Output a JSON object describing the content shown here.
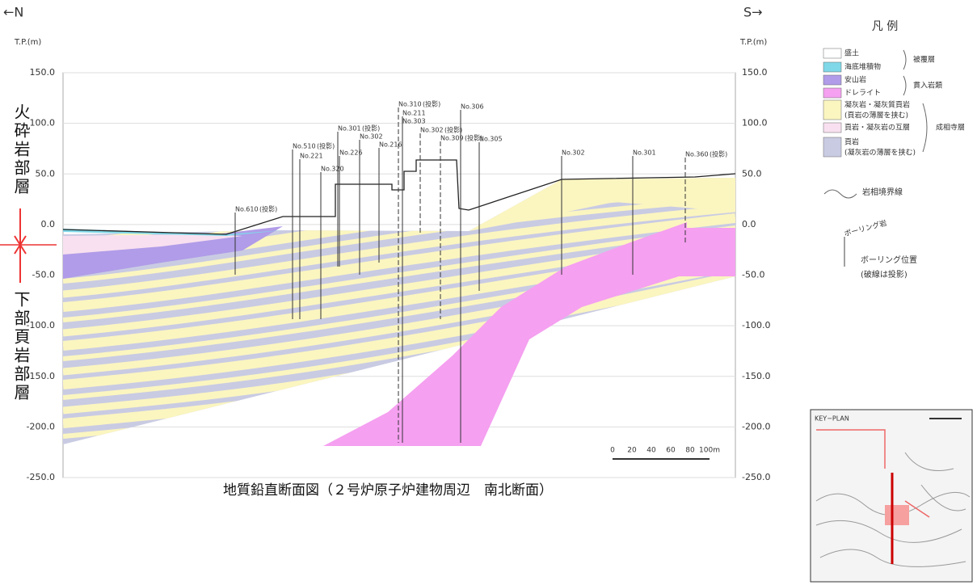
{
  "header": {
    "north": "←N",
    "south": "S→"
  },
  "axis": {
    "unit_left": "T.P.(m)",
    "unit_right": "T.P.(m)",
    "labels": [
      "150.0",
      "100.0",
      "50.0",
      "0.0",
      "-50.0",
      "-100.0",
      "-150.0",
      "-200.0",
      "-250.0"
    ]
  },
  "side_labels": [
    "火砕岩部層",
    "下部頁岩部層"
  ],
  "boreholes": [
    {
      "name": "No.610",
      "note": "(投影)"
    },
    {
      "name": "No.510",
      "note": "(投影)"
    },
    {
      "name": "No.221"
    },
    {
      "name": "No.320"
    },
    {
      "name": "No.301",
      "note": "(投影)"
    },
    {
      "name": "No.226"
    },
    {
      "name": "No.302"
    },
    {
      "name": "No.216"
    },
    {
      "name": "No.310",
      "note": "(投影)"
    },
    {
      "name": "No.211"
    },
    {
      "name": "No.303"
    },
    {
      "name": "No.302",
      "note": "(投影)"
    },
    {
      "name": "No.309",
      "note": "(投影)"
    },
    {
      "name": "No.306"
    },
    {
      "name": "No.305"
    },
    {
      "name": "No.302"
    },
    {
      "name": "No.301"
    },
    {
      "name": "No.360",
      "note": "(投影)"
    }
  ],
  "scale": [
    "0",
    "20",
    "40",
    "60",
    "80",
    "100m"
  ],
  "caption": "地質鉛直断面図（２号炉原子炉建物周辺　南北断面）",
  "legend": {
    "title": "凡 例",
    "items": [
      {
        "label": "盛土"
      },
      {
        "label": "海底堆積物"
      },
      {
        "label": "安山岩"
      },
      {
        "label": "ドレライト"
      },
      {
        "label": "凝灰岩・凝灰質頁岩",
        "note": "(頁岩の薄層を挟む)"
      },
      {
        "label": "頁岩・凝灰岩の互層"
      },
      {
        "label": "頁岩",
        "note": "(凝灰岩の薄層を挟む)"
      }
    ],
    "groups": [
      "被覆層",
      "貫入岩類",
      "成相寺層"
    ],
    "boundary": "岩相境界線",
    "boring_mark": "ボーリング岩",
    "boring": "ボーリング位置",
    "boring_note": "(破線は投影)"
  },
  "key_plan": "KEY−PLAN"
}
